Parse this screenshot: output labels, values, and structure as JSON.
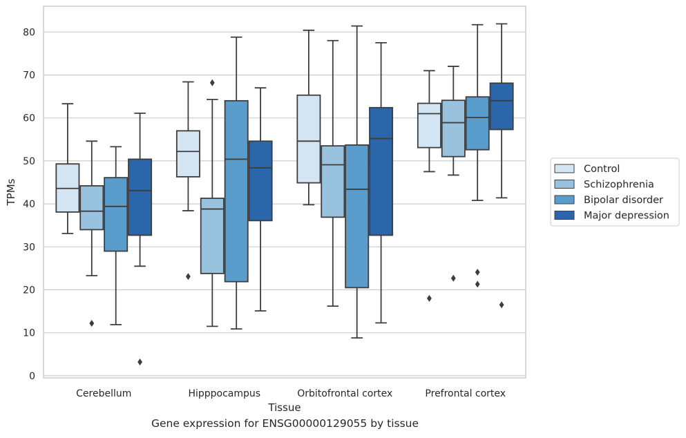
{
  "caption": "Gene expression for ENSG00000129055 by tissue",
  "chart_data": {
    "type": "box",
    "xlabel": "Tissue",
    "ylabel": "TPMs",
    "ylim": [
      -0.5,
      86
    ],
    "yticks": [
      0,
      10,
      20,
      30,
      40,
      50,
      60,
      70,
      80
    ],
    "grid": "horizontal",
    "legend_position": "right",
    "categories": [
      "Cerebellum",
      "Hipppocampus",
      "Orbitofrontal cortex",
      "Prefrontal cortex"
    ],
    "series": [
      {
        "name": "Control",
        "color": "#d3e4f3",
        "boxes": [
          {
            "whisker_low": 33.1,
            "q1": 38.1,
            "median": 43.6,
            "q3": 49.3,
            "whisker_high": 63.3,
            "outliers": []
          },
          {
            "whisker_low": 38.4,
            "q1": 46.3,
            "median": 52.2,
            "q3": 57.0,
            "whisker_high": 68.4,
            "outliers": [
              23.1
            ]
          },
          {
            "whisker_low": 39.8,
            "q1": 44.9,
            "median": 54.6,
            "q3": 65.3,
            "whisker_high": 80.4,
            "outliers": []
          },
          {
            "whisker_low": 47.5,
            "q1": 53.1,
            "median": 61.0,
            "q3": 63.4,
            "whisker_high": 71.0,
            "outliers": [
              18.0
            ]
          }
        ]
      },
      {
        "name": "Schizophrenia",
        "color": "#99c2de",
        "boxes": [
          {
            "whisker_low": 23.3,
            "q1": 34.0,
            "median": 38.3,
            "q3": 44.2,
            "whisker_high": 54.6,
            "outliers": [
              12.2
            ]
          },
          {
            "whisker_low": 11.5,
            "q1": 23.8,
            "median": 38.8,
            "q3": 41.3,
            "whisker_high": 64.3,
            "outliers": [
              68.2
            ]
          },
          {
            "whisker_low": 16.2,
            "q1": 36.9,
            "median": 49.1,
            "q3": 53.5,
            "whisker_high": 78.0,
            "outliers": []
          },
          {
            "whisker_low": 46.7,
            "q1": 51.0,
            "median": 58.9,
            "q3": 64.1,
            "whisker_high": 72.0,
            "outliers": [
              22.7
            ]
          }
        ]
      },
      {
        "name": "Bipolar disorder",
        "color": "#5a9ccb",
        "boxes": [
          {
            "whisker_low": 11.9,
            "q1": 29.0,
            "median": 39.4,
            "q3": 46.1,
            "whisker_high": 53.3,
            "outliers": []
          },
          {
            "whisker_low": 10.9,
            "q1": 21.9,
            "median": 50.4,
            "q3": 64.0,
            "whisker_high": 78.8,
            "outliers": []
          },
          {
            "whisker_low": 8.8,
            "q1": 20.5,
            "median": 43.4,
            "q3": 53.7,
            "whisker_high": 81.4,
            "outliers": []
          },
          {
            "whisker_low": 40.8,
            "q1": 52.6,
            "median": 60.1,
            "q3": 64.9,
            "whisker_high": 81.7,
            "outliers": [
              24.1,
              21.3
            ]
          }
        ]
      },
      {
        "name": "Major depression",
        "color": "#2a66a9",
        "boxes": [
          {
            "whisker_low": 25.5,
            "q1": 32.7,
            "median": 43.1,
            "q3": 50.4,
            "whisker_high": 61.1,
            "outliers": [
              3.2
            ]
          },
          {
            "whisker_low": 15.1,
            "q1": 36.1,
            "median": 48.4,
            "q3": 54.6,
            "whisker_high": 67.0,
            "outliers": []
          },
          {
            "whisker_low": 12.3,
            "q1": 32.7,
            "median": 55.2,
            "q3": 62.4,
            "whisker_high": 77.5,
            "outliers": []
          },
          {
            "whisker_low": 41.4,
            "q1": 57.3,
            "median": 64.0,
            "q3": 68.1,
            "whisker_high": 81.9,
            "outliers": [
              16.5
            ]
          }
        ]
      }
    ]
  }
}
